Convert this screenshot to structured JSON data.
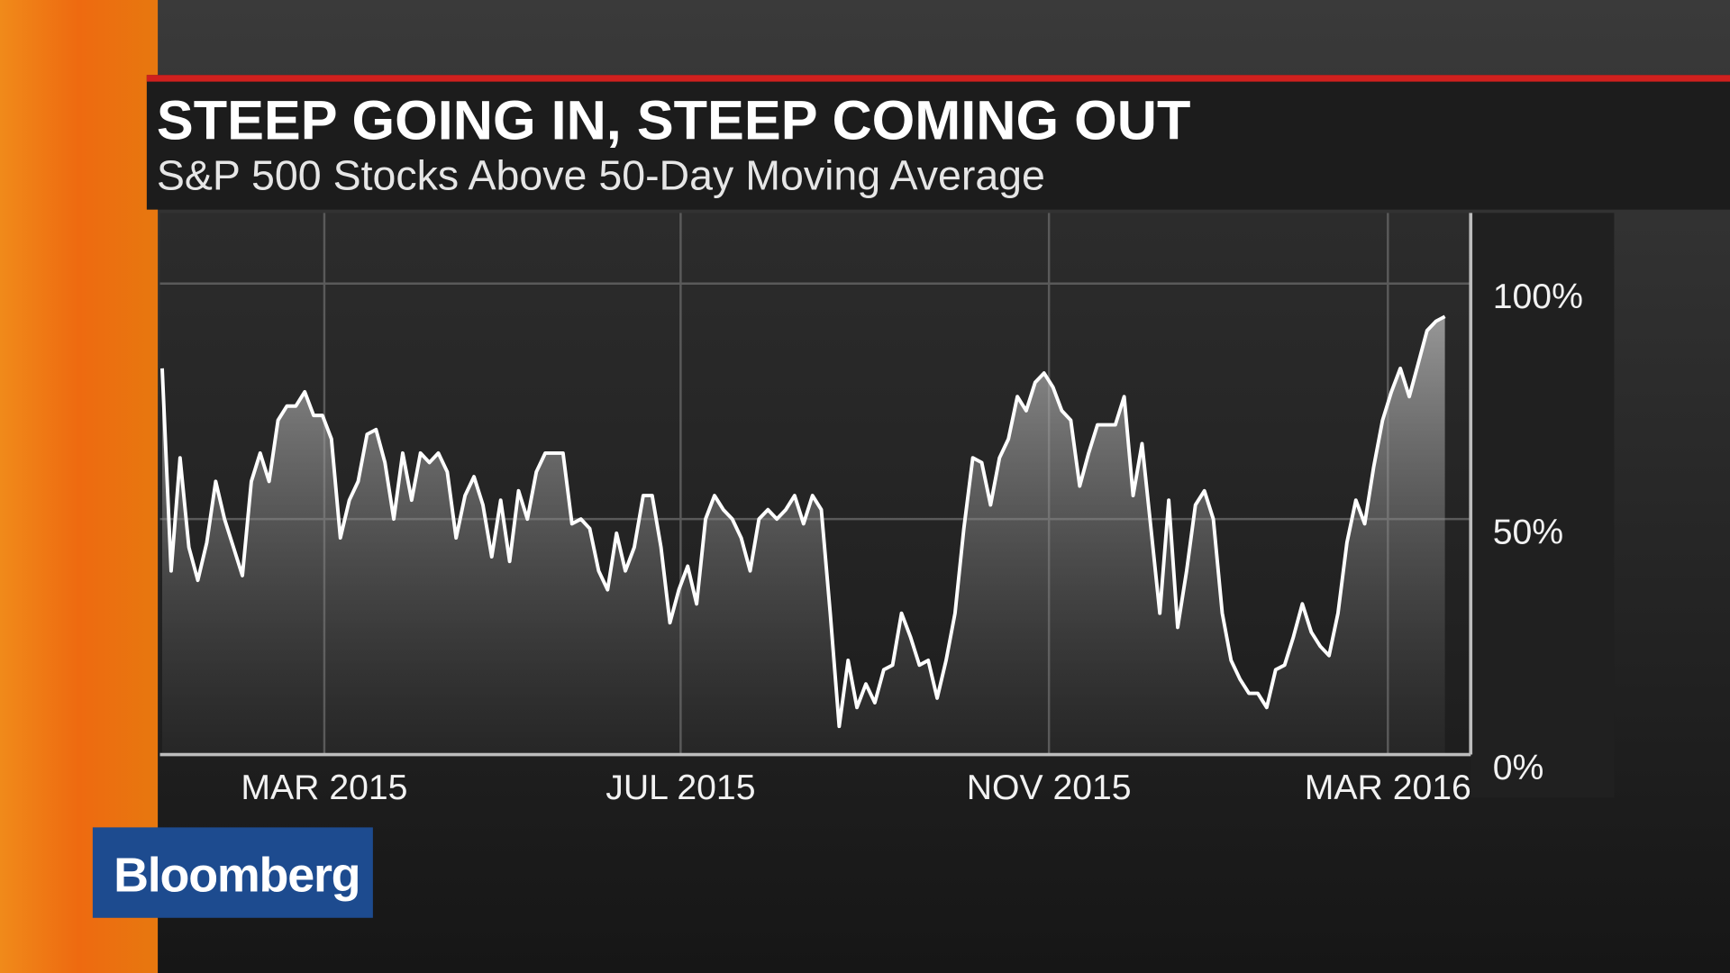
{
  "chart_data": {
    "type": "line",
    "title": "STEEP GOING IN, STEEP COMING OUT",
    "subtitle": "S&P 500 Stocks Above 50-Day Moving Average",
    "logo": "Bloomberg",
    "series": [
      {
        "color": "#ffffff",
        "values": [
          82,
          39,
          63,
          44,
          37,
          45,
          58,
          50,
          44,
          38,
          58,
          64,
          58,
          71,
          74,
          74,
          77,
          72,
          72,
          67,
          46,
          54,
          58,
          68,
          69,
          62,
          50,
          64,
          54,
          64,
          62,
          64,
          60,
          46,
          55,
          59,
          53,
          42,
          54,
          41,
          56,
          50,
          60,
          64,
          64,
          64,
          49,
          50,
          48,
          39,
          35,
          47,
          39,
          44,
          55,
          55,
          44,
          28,
          35,
          40,
          32,
          50,
          55,
          52,
          50,
          46,
          39,
          50,
          52,
          50,
          52,
          55,
          49,
          55,
          52,
          30,
          6,
          20,
          10,
          15,
          11,
          18,
          19,
          30,
          25,
          19,
          20,
          12,
          20,
          30,
          48,
          63,
          62,
          53,
          63,
          67,
          76,
          73,
          79,
          81,
          78,
          73,
          71,
          57,
          64,
          70,
          70,
          70,
          76,
          55,
          66,
          48,
          30,
          54,
          27,
          39,
          53,
          56,
          50,
          30,
          20,
          16,
          13,
          13,
          10,
          18,
          19,
          25,
          32,
          26,
          23,
          21,
          30,
          45,
          54,
          49,
          61,
          71,
          77,
          82,
          76,
          83,
          90,
          92,
          93
        ]
      }
    ],
    "xlim": [
      -0.25,
      146.9
    ],
    "xticks": [
      {
        "value": 18.2,
        "label": "MAR 2015"
      },
      {
        "value": 58.2,
        "label": "JUL 2015"
      },
      {
        "value": 99.55,
        "label": "NOV 2015"
      },
      {
        "value": 137.6,
        "label": "MAR 2016"
      }
    ],
    "ylim": [
      0,
      115
    ],
    "yticks": [
      {
        "value": 0,
        "label": "0%"
      },
      {
        "value": 50,
        "label": "50%"
      },
      {
        "value": 100,
        "label": "100%"
      }
    ],
    "grid": true
  }
}
